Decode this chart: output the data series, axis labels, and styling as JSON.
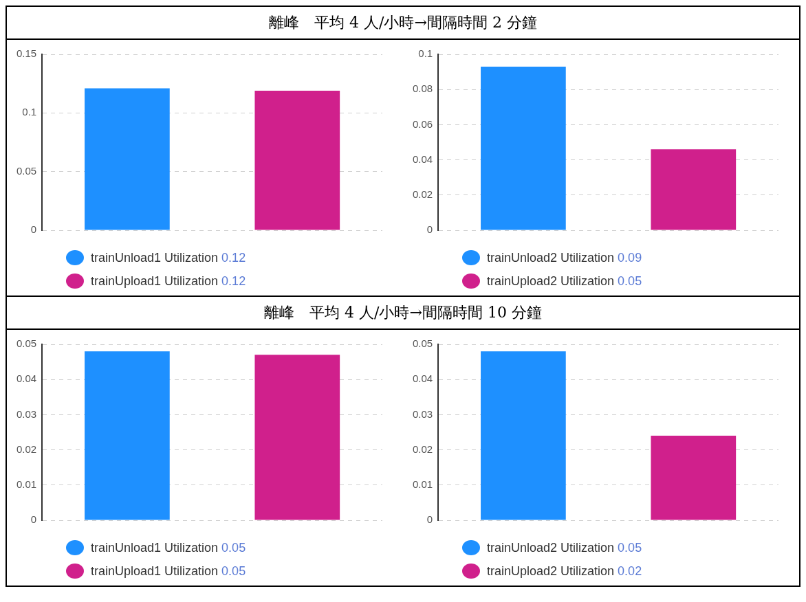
{
  "chart_data": [
    {
      "type": "bar",
      "title": "離峰　平均 4 人/小時→間隔時間 2 分鐘",
      "categories": [
        null,
        null
      ],
      "ylim": [
        0,
        0.15
      ],
      "yticks": [
        0,
        0.05,
        0.1,
        0.15
      ],
      "grid": "y",
      "legend": "bottom",
      "tick_labels": "y",
      "series": [
        {
          "name": "trainUnload1 Utilization 0.12",
          "color": "#1e90ff",
          "values": [
            0.121,
            null
          ]
        },
        {
          "name": "trainUpload1 Utilization 0.12",
          "color": "#d0208c",
          "values": [
            null,
            0.119
          ]
        }
      ]
    },
    {
      "type": "bar",
      "categories": [
        null,
        null
      ],
      "ylim": [
        0,
        0.1
      ],
      "yticks": [
        0,
        0.02,
        0.04,
        0.06,
        0.08,
        0.1
      ],
      "grid": "y",
      "legend": "bottom",
      "tick_labels": "y",
      "series": [
        {
          "name": "trainUnload2 Utilization 0.09",
          "color": "#1e90ff",
          "values": [
            0.093,
            null
          ]
        },
        {
          "name": "trainUpload2 Utilization 0.05",
          "color": "#d0208c",
          "values": [
            null,
            0.046
          ]
        }
      ]
    },
    {
      "type": "bar",
      "title": "離峰　平均 4 人/小時→間隔時間 10 分鐘",
      "categories": [
        null,
        null
      ],
      "ylim": [
        0,
        0.05
      ],
      "yticks": [
        0,
        0.01,
        0.02,
        0.03,
        0.04,
        0.05
      ],
      "grid": "y",
      "legend": "bottom",
      "tick_labels": "y",
      "series": [
        {
          "name": "trainUnload1 Utilization 0.05",
          "color": "#1e90ff",
          "values": [
            0.048,
            null
          ]
        },
        {
          "name": "trainUpload1 Utilization 0.05",
          "color": "#d0208c",
          "values": [
            null,
            0.047
          ]
        }
      ]
    },
    {
      "type": "bar",
      "categories": [
        null,
        null
      ],
      "ylim": [
        0,
        0.05
      ],
      "yticks": [
        0,
        0.01,
        0.02,
        0.03,
        0.04,
        0.05
      ],
      "grid": "y",
      "legend": "bottom",
      "tick_labels": "y",
      "series": [
        {
          "name": "trainUnload2 Utilization 0.05",
          "color": "#1e90ff",
          "values": [
            0.048,
            null
          ]
        },
        {
          "name": "trainUpload2 Utilization 0.02",
          "color": "#d0208c",
          "values": [
            null,
            0.024
          ]
        }
      ]
    }
  ]
}
